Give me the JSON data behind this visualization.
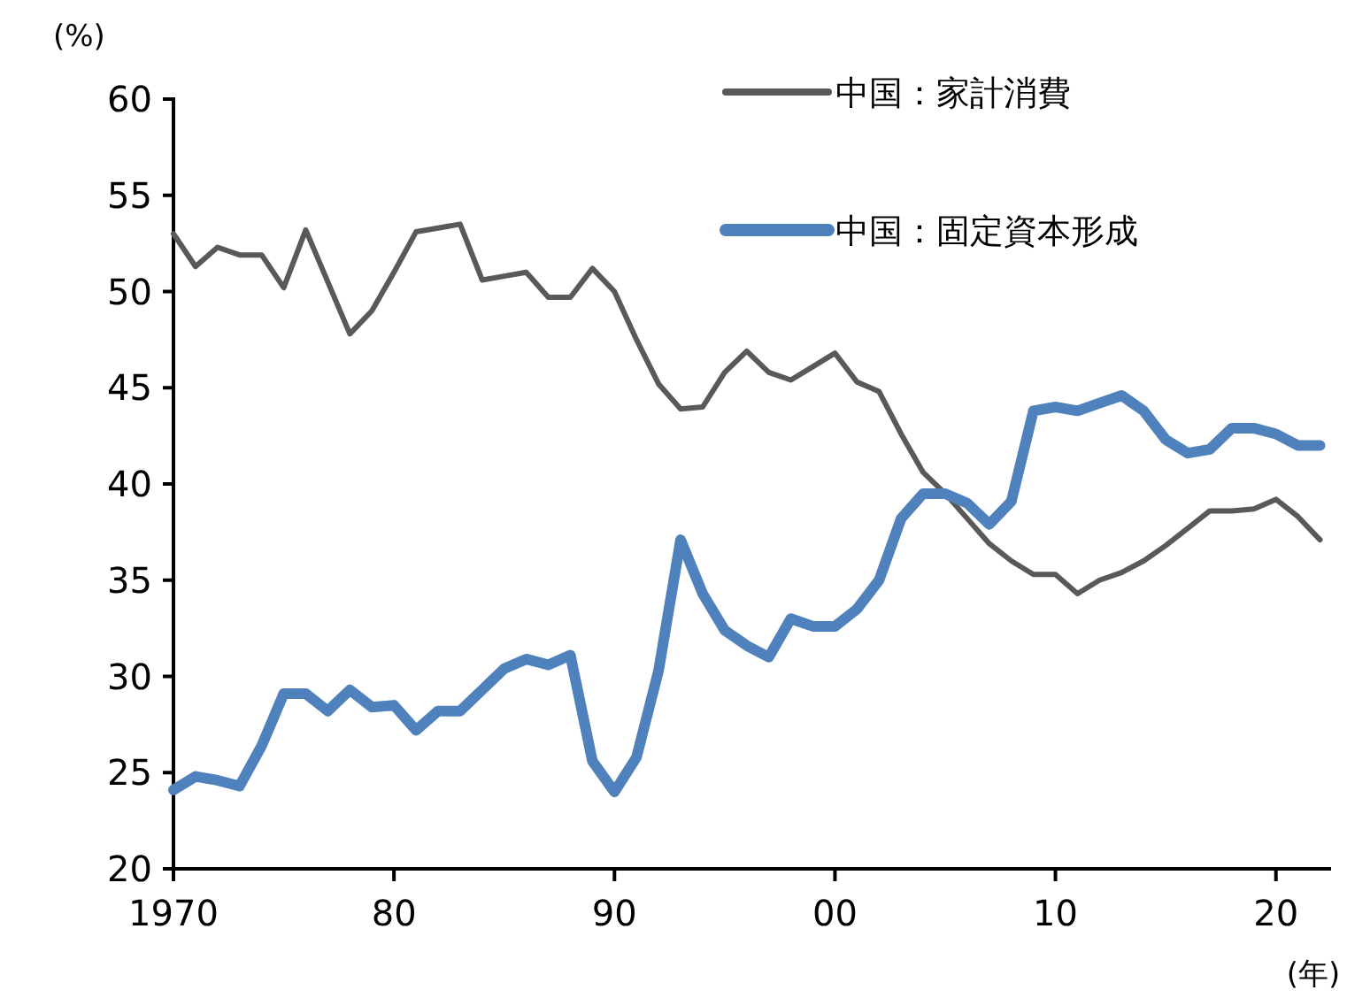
{
  "chart_data": {
    "type": "line",
    "ylabel": "(%)",
    "xlabel": "(年)",
    "x": [
      1970,
      1971,
      1972,
      1973,
      1974,
      1975,
      1976,
      1977,
      1978,
      1979,
      1980,
      1981,
      1982,
      1983,
      1984,
      1985,
      1986,
      1987,
      1988,
      1989,
      1990,
      1991,
      1992,
      1993,
      1994,
      1995,
      1996,
      1997,
      1998,
      1999,
      2000,
      2001,
      2002,
      2003,
      2004,
      2005,
      2006,
      2007,
      2008,
      2009,
      2010,
      2011,
      2012,
      2013,
      2014,
      2015,
      2016,
      2017,
      2018,
      2019,
      2020,
      2021,
      2022
    ],
    "series": [
      {
        "name": "中国：家計消費",
        "color": "#595959",
        "values": [
          53.0,
          51.3,
          52.3,
          51.9,
          51.9,
          50.2,
          53.2,
          50.5,
          47.8,
          49.0,
          51.0,
          53.1,
          53.3,
          53.5,
          50.6,
          50.8,
          51.0,
          49.7,
          49.7,
          51.2,
          50.0,
          47.5,
          45.2,
          43.9,
          44.0,
          45.8,
          46.9,
          45.8,
          45.4,
          46.1,
          46.8,
          45.3,
          44.8,
          42.6,
          40.6,
          39.5,
          38.2,
          36.9,
          36.0,
          35.3,
          35.3,
          34.3,
          35.0,
          35.4,
          36.0,
          36.8,
          37.7,
          38.6,
          38.6,
          38.7,
          39.2,
          38.3,
          37.1
        ]
      },
      {
        "name": "中国：固定資本形成",
        "color": "#4f81bd",
        "values": [
          24.1,
          24.8,
          24.6,
          24.3,
          26.4,
          29.1,
          29.1,
          28.2,
          29.3,
          28.4,
          28.5,
          27.2,
          28.2,
          28.2,
          29.3,
          30.4,
          30.9,
          30.6,
          31.1,
          25.6,
          24.0,
          25.8,
          30.3,
          37.1,
          34.3,
          32.4,
          31.6,
          31.0,
          33.0,
          32.6,
          32.6,
          33.5,
          35.0,
          38.2,
          39.5,
          39.5,
          39.0,
          37.9,
          39.1,
          43.8,
          44.0,
          43.8,
          44.2,
          44.6,
          43.8,
          42.3,
          41.6,
          41.8,
          42.9,
          42.9,
          42.6,
          42.0,
          42.0
        ]
      }
    ],
    "xlim": [
      1970,
      2022.5
    ],
    "ylim": [
      20,
      60
    ],
    "xticks": [
      1970,
      {
        "value": 1980,
        "label": "80"
      },
      {
        "value": 1990,
        "label": "90"
      },
      {
        "value": 2000,
        "label": "00"
      },
      {
        "value": 2010,
        "label": "10"
      },
      {
        "value": 2020,
        "label": "20"
      }
    ],
    "yticks": [
      20,
      25,
      30,
      35,
      40,
      45,
      50,
      55,
      60
    ],
    "grid": false,
    "legend": "top right",
    "marker": "none",
    "line_style": "solid"
  }
}
